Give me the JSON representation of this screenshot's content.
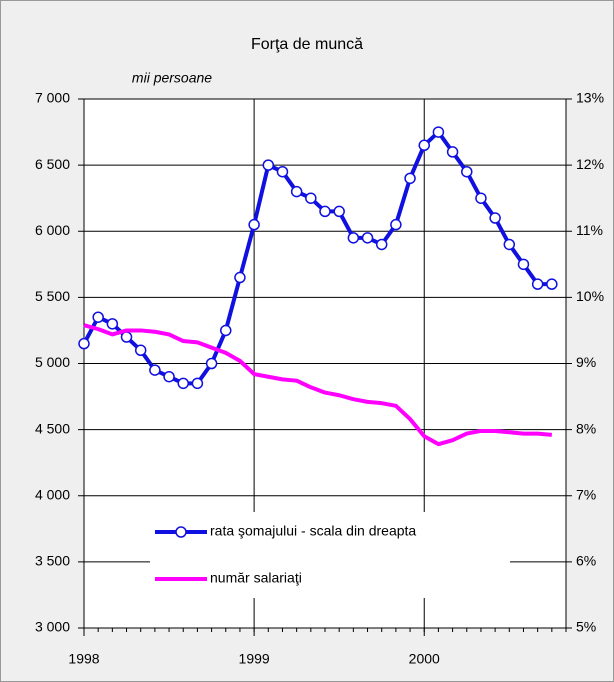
{
  "chart_data": {
    "type": "line",
    "title": "Forţa de muncă",
    "y_label": "mii persoane",
    "categories": [
      "1998",
      null,
      null,
      null,
      null,
      null,
      null,
      null,
      null,
      null,
      null,
      null,
      "1999",
      null,
      null,
      null,
      null,
      null,
      null,
      null,
      null,
      null,
      null,
      null,
      "2000",
      null,
      null,
      null,
      null,
      null,
      null,
      null,
      null,
      null
    ],
    "series": [
      {
        "name": "rata şomajului - scala din dreapta",
        "color": "#1010e0",
        "axis": "y2",
        "marker": "circle",
        "values": [
          9.3,
          9.7,
          9.6,
          9.4,
          9.2,
          8.9,
          8.8,
          8.7,
          8.7,
          9.0,
          9.5,
          10.3,
          11.1,
          12.0,
          11.9,
          11.6,
          11.5,
          11.3,
          11.3,
          10.9,
          10.9,
          10.8,
          11.1,
          11.8,
          12.3,
          12.5,
          12.2,
          11.9,
          11.5,
          11.2,
          10.8,
          10.5,
          10.2,
          10.2
        ]
      },
      {
        "name": "număr salariaţi",
        "color": "#ff00ff",
        "axis": "y",
        "values": [
          5290,
          5260,
          5220,
          5250,
          5250,
          5240,
          5220,
          5170,
          5160,
          5120,
          5080,
          5020,
          4920,
          4900,
          4880,
          4870,
          4820,
          4780,
          4760,
          4730,
          4710,
          4700,
          4680,
          4580,
          4450,
          4390,
          4420,
          4470,
          4490,
          4490,
          4480,
          4470,
          4470,
          4460
        ]
      }
    ],
    "ylim": [
      3000,
      7000
    ],
    "yticks": [
      {
        "value": 3000,
        "label": "3 000"
      },
      {
        "value": 3500,
        "label": "3 500"
      },
      {
        "value": 4000,
        "label": "4 000"
      },
      {
        "value": 4500,
        "label": "4 500"
      },
      {
        "value": 5000,
        "label": "5 000"
      },
      {
        "value": 5500,
        "label": "5 500"
      },
      {
        "value": 6000,
        "label": "6 000"
      },
      {
        "value": 6500,
        "label": "6 500"
      },
      {
        "value": 7000,
        "label": "7 000"
      }
    ],
    "y2lim": [
      5,
      13
    ],
    "y2ticks": [
      {
        "value": 5,
        "label": "5%"
      },
      {
        "value": 6,
        "label": "6%"
      },
      {
        "value": 7,
        "label": "7%"
      },
      {
        "value": 8,
        "label": "8%"
      },
      {
        "value": 9,
        "label": "9%"
      },
      {
        "value": 10,
        "label": "10%"
      },
      {
        "value": 11,
        "label": "11%"
      },
      {
        "value": 12,
        "label": "12%"
      },
      {
        "value": 13,
        "label": "13%"
      }
    ],
    "grid": true,
    "legend": "bottom"
  }
}
